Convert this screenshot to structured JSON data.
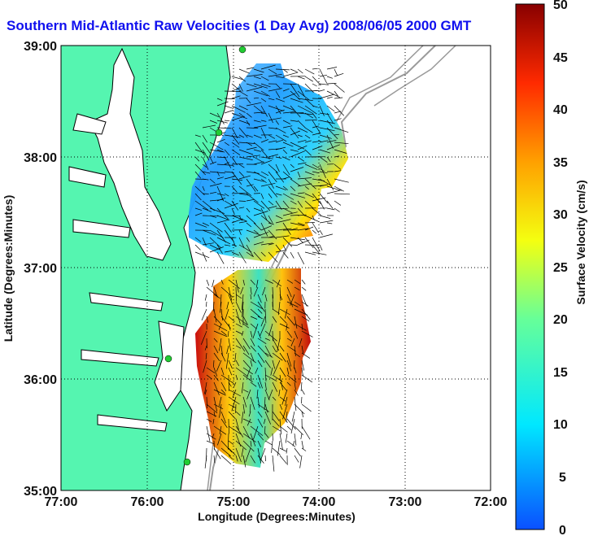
{
  "figure": {
    "title": "Southern Mid-Atlantic Raw Velocities (1 Day Avg) 2008/06/05 2000 GMT",
    "xlabel": "Longitude (Degrees:Minutes)",
    "ylabel": "Latitude (Degrees:Minutes)",
    "x_ticks": [
      "77:00",
      "76:00",
      "75:00",
      "74:00",
      "73:00",
      "72:00"
    ],
    "y_ticks": [
      "39:00",
      "38:00",
      "37:00",
      "36:00",
      "35:00"
    ]
  },
  "colorbar": {
    "label": "Surface Velocity (cm/s)",
    "ticks": [
      "50",
      "45",
      "40",
      "35",
      "30",
      "25",
      "20",
      "15",
      "10",
      "5",
      "0"
    ],
    "min": 0,
    "max": 50
  },
  "colors": {
    "land": "#55f5b0",
    "title": "#1010ee",
    "coastline": "#000000",
    "bathymetry": "#9a9a9a",
    "station": "#22cc33"
  }
}
